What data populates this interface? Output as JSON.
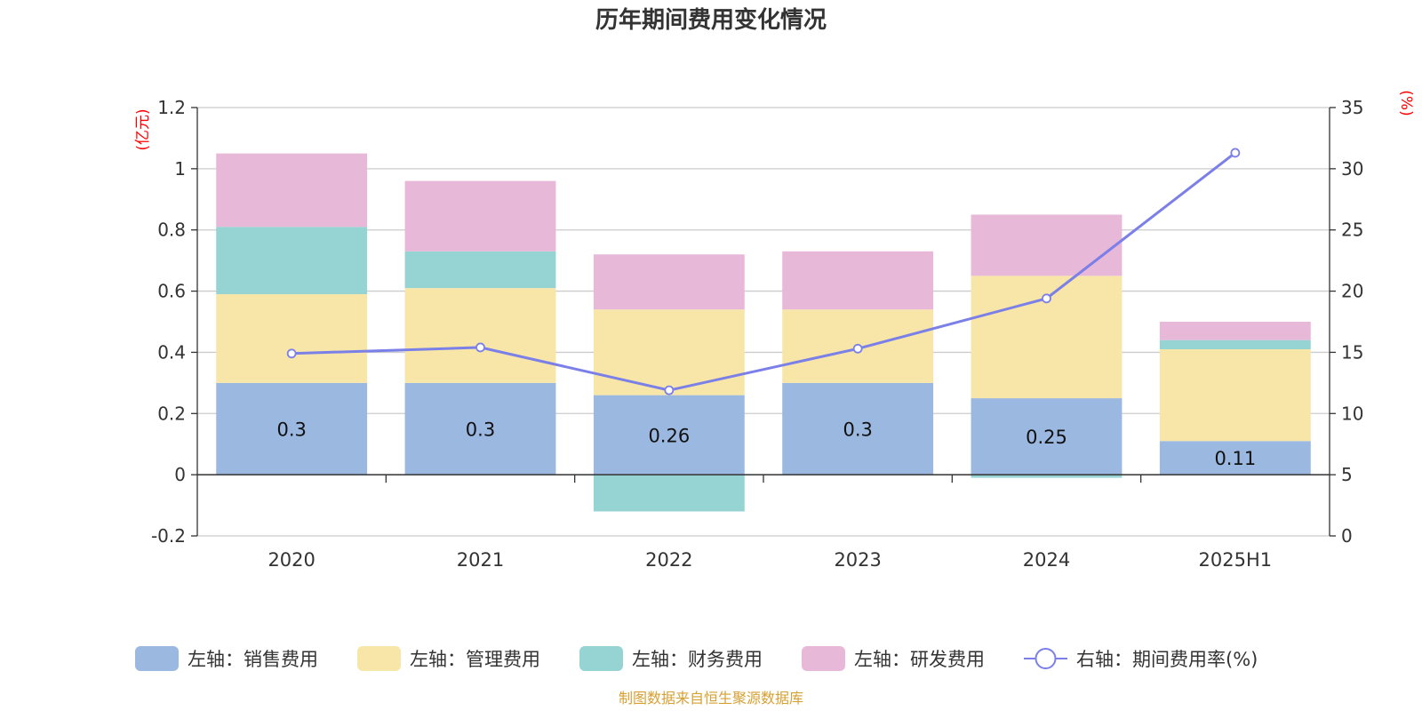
{
  "chart_data": {
    "type": "bar",
    "title": "历年期间费用变化情况",
    "categories": [
      "2020",
      "2021",
      "2022",
      "2023",
      "2024",
      "2025H1"
    ],
    "left_axis": {
      "unit_label": "(亿元)",
      "ylim": [
        -0.2,
        1.2
      ],
      "ticks": [
        -0.2,
        0,
        0.2,
        0.4,
        0.6,
        0.8,
        1,
        1.2
      ],
      "tick_labels": [
        "-0.2",
        "0",
        "0.2",
        "0.4",
        "0.6",
        "0.8",
        "1",
        "1.2"
      ]
    },
    "right_axis": {
      "unit_label": "(%)",
      "ylim": [
        0,
        35
      ],
      "ticks": [
        0,
        5,
        10,
        15,
        20,
        25,
        30,
        35
      ],
      "tick_labels": [
        "0",
        "5",
        "10",
        "15",
        "20",
        "25",
        "30",
        "35"
      ]
    },
    "series": [
      {
        "name": "左轴：销售费用",
        "type": "bar",
        "axis": "left",
        "color": "#9bb8e0",
        "values": [
          0.3,
          0.3,
          0.26,
          0.3,
          0.25,
          0.11
        ],
        "data_labels": [
          "0.3",
          "0.3",
          "0.26",
          "0.3",
          "0.25",
          "0.11"
        ]
      },
      {
        "name": "左轴：管理费用",
        "type": "bar",
        "axis": "left",
        "color": "#f7e6a8",
        "values": [
          0.29,
          0.31,
          0.28,
          0.24,
          0.4,
          0.3
        ]
      },
      {
        "name": "左轴：财务费用",
        "type": "bar",
        "axis": "left",
        "color": "#96d3d3",
        "values": [
          0.22,
          0.12,
          -0.12,
          0.0,
          -0.01,
          0.03
        ]
      },
      {
        "name": "左轴：研发费用",
        "type": "bar",
        "axis": "left",
        "color": "#e8b8d8",
        "values": [
          0.24,
          0.23,
          0.18,
          0.19,
          0.2,
          0.06
        ]
      },
      {
        "name": "右轴：期间费用率(%)",
        "type": "line",
        "axis": "right",
        "color": "#7b7fe8",
        "values": [
          14.9,
          15.4,
          11.9,
          15.3,
          19.4,
          31.3
        ]
      }
    ],
    "grid": true,
    "legend_position": "bottom"
  },
  "source_note": "制图数据来自恒生聚源数据库"
}
